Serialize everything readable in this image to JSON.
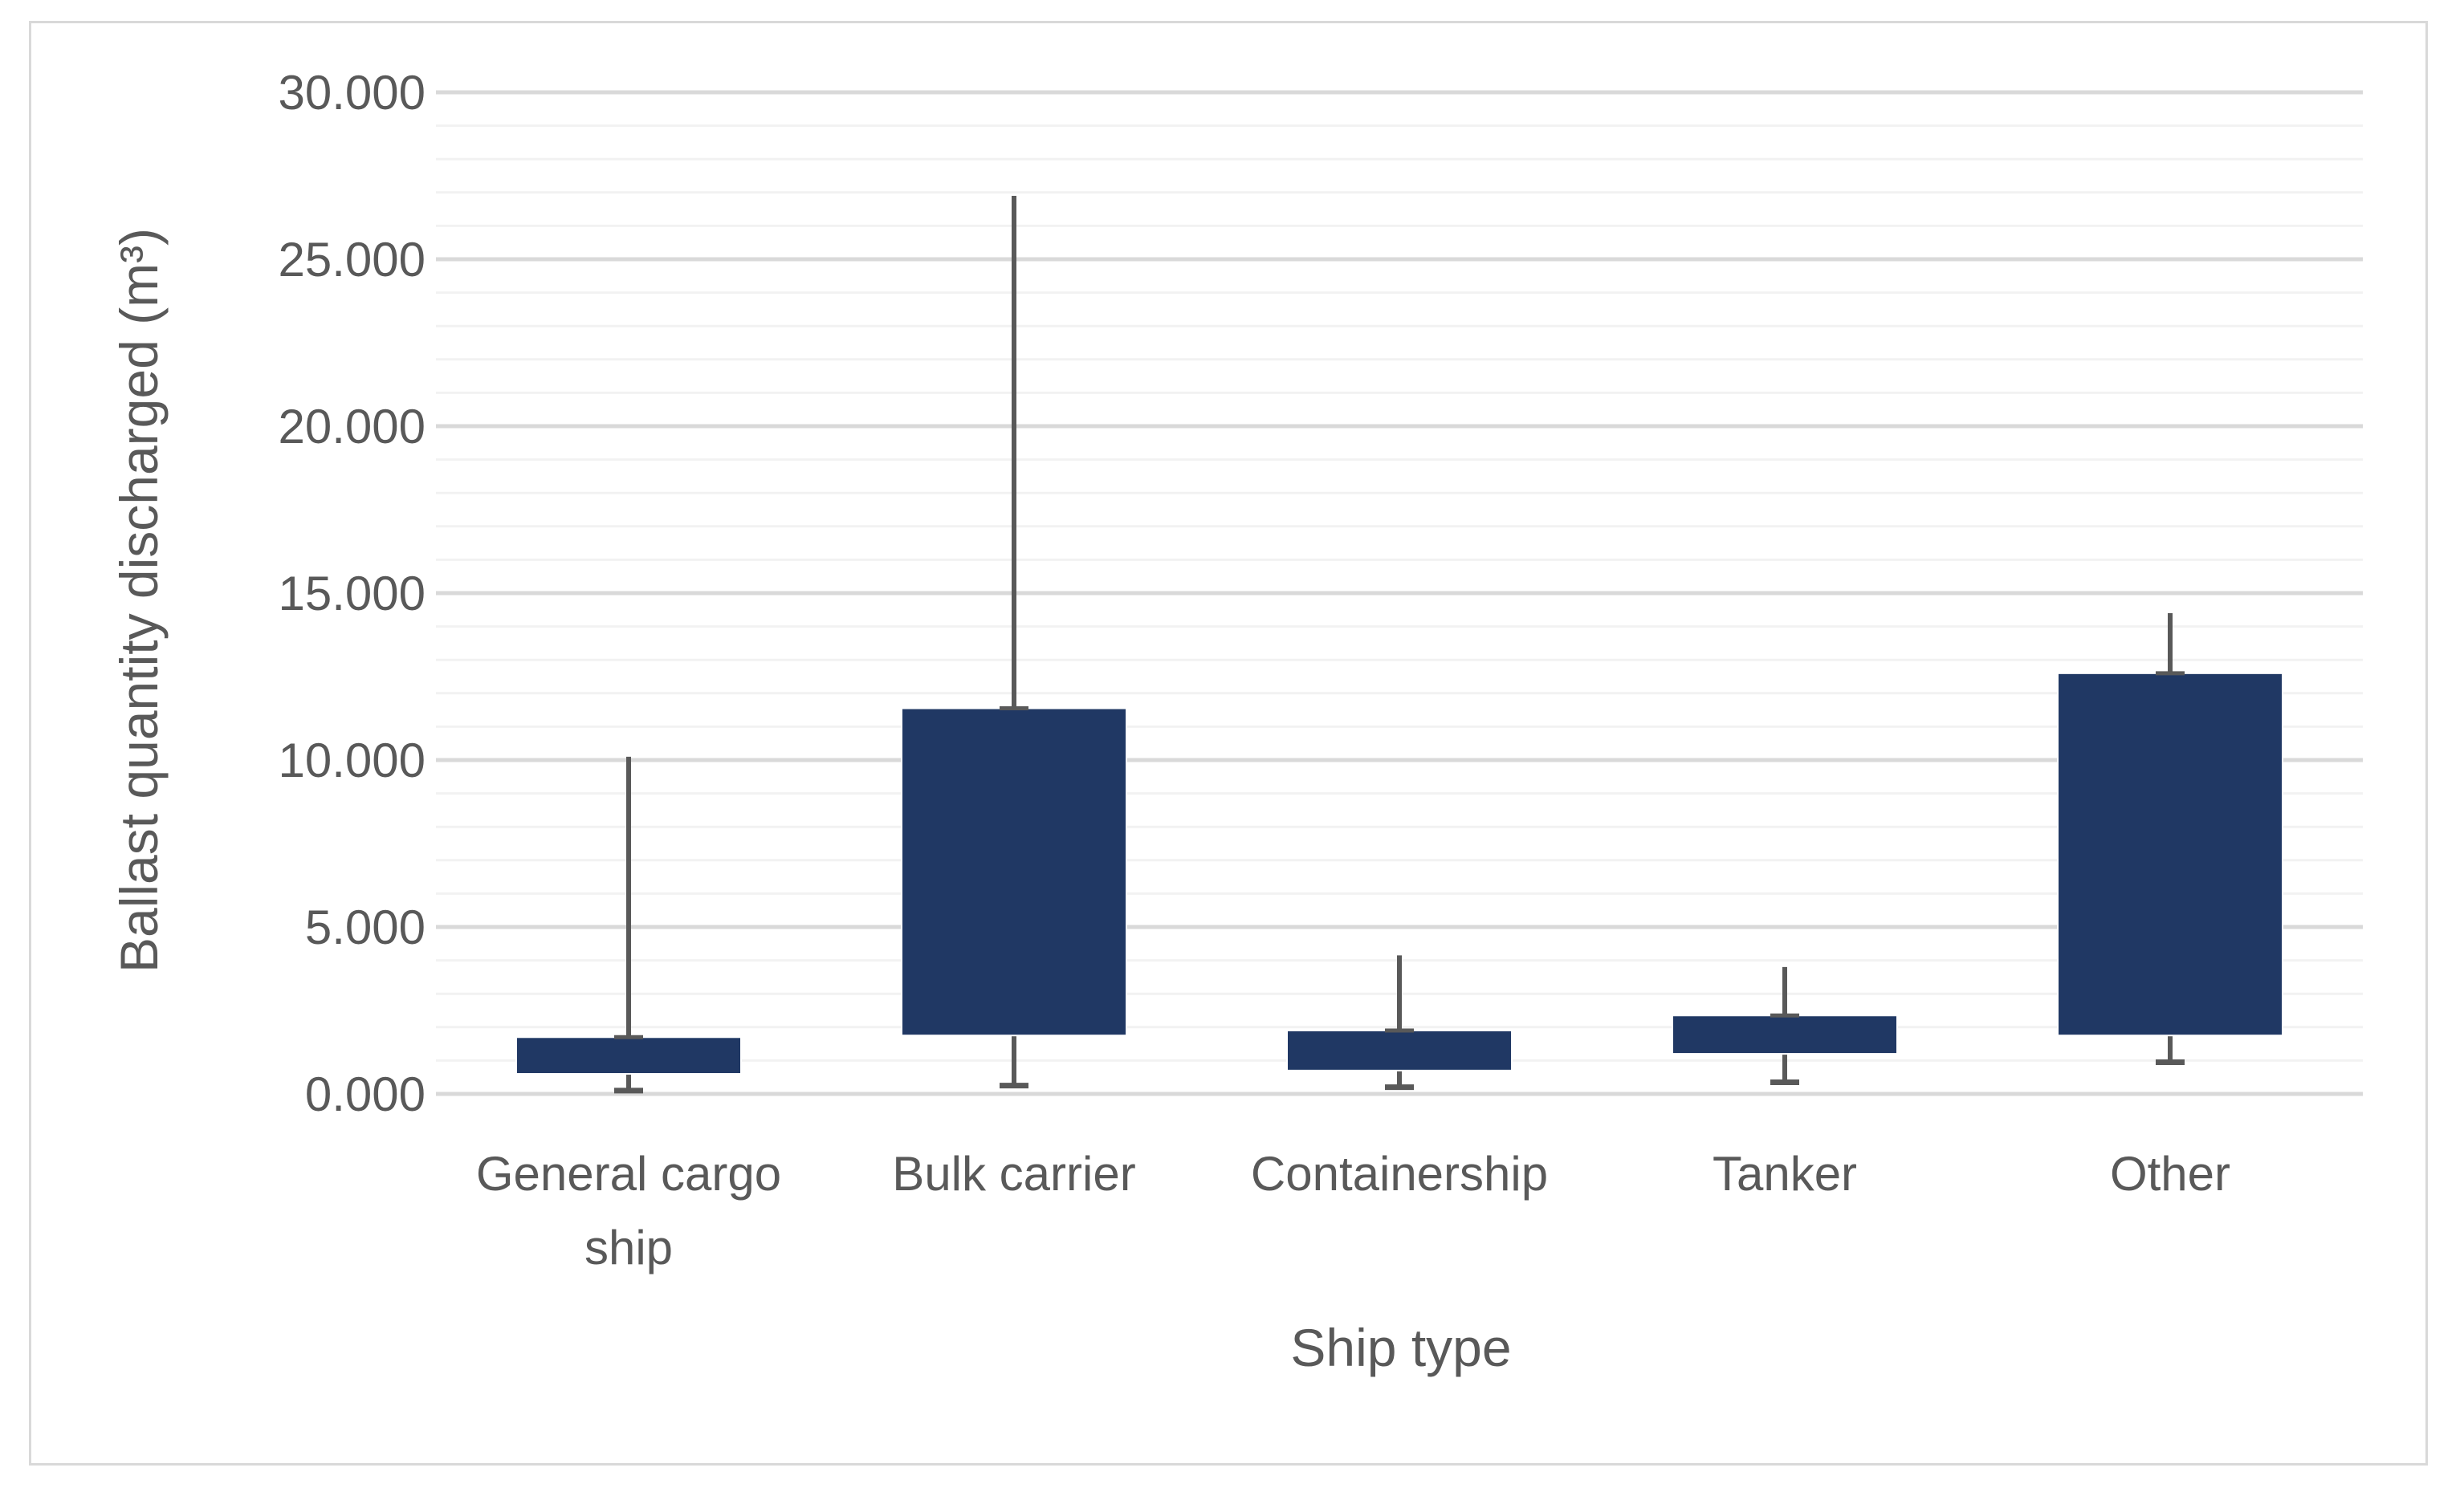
{
  "chart_data": {
    "type": "bar",
    "title": "",
    "xlabel": "Ship type",
    "ylabel": "Ballast quantity discharged (m³)",
    "ylim": [
      0,
      30000
    ],
    "y_ticks": [
      "0.000",
      "5.000",
      "10.000",
      "15.000",
      "20.000",
      "25.000",
      "30.000"
    ],
    "y_tick_values": [
      0,
      5000,
      10000,
      15000,
      20000,
      25000,
      30000
    ],
    "grid": true,
    "legend": "none",
    "categories": [
      "General cargo ship",
      "Bulk carrier",
      "Containership",
      "Tanker",
      "Other"
    ],
    "category_label_lines": [
      [
        "General cargo",
        "ship"
      ],
      [
        "Bulk carrier"
      ],
      [
        "Containership"
      ],
      [
        "Tanker"
      ],
      [
        "Other"
      ]
    ],
    "boxes": [
      {
        "category": "General cargo ship",
        "min": 100,
        "q1": 600,
        "q3": 1700,
        "max": 10100
      },
      {
        "category": "Bulk carrier",
        "min": 250,
        "q1": 1750,
        "q3": 11550,
        "max": 26900
      },
      {
        "category": "Containership",
        "min": 200,
        "q1": 700,
        "q3": 1900,
        "max": 4150
      },
      {
        "category": "Tanker",
        "min": 350,
        "q1": 1200,
        "q3": 2350,
        "max": 3800
      },
      {
        "category": "Other",
        "min": 950,
        "q1": 1750,
        "q3": 12600,
        "max": 14400
      }
    ],
    "colors": {
      "bar": "#203864",
      "whisker": "#595959",
      "grid_major": "#d9d9d9",
      "grid_minor": "#f2f2f2",
      "text": "#595959"
    }
  }
}
